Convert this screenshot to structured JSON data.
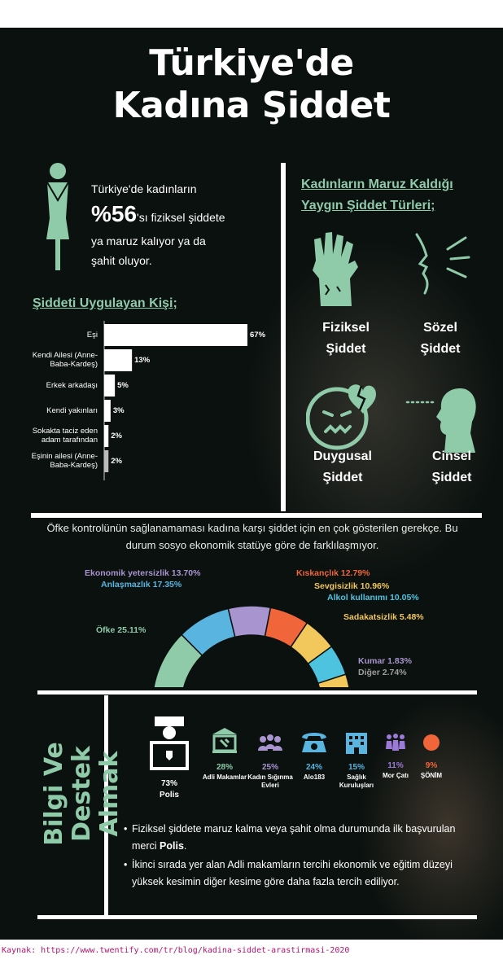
{
  "colors": {
    "background": "#0b110f",
    "accent_green": "#8fcaa9",
    "source_link": "#b0156f"
  },
  "header": {
    "title_line1": "Türkiye'de",
    "title_line2": "Kadına Şiddet"
  },
  "stat": {
    "line1": "Türkiye'de kadınların",
    "big": "%56",
    "line2": "'sı fiziksel şiddete",
    "line3": "ya maruz kalıyor ya da",
    "line4": "şahit oluyor.",
    "icon": "woman-figure-icon"
  },
  "perpetrator_title": "Şiddeti Uygulayan Kişi;",
  "violence_types": {
    "title_line1": "Kadınların Maruz Kaldığı",
    "title_line2": "Yaygın Şiddet Türleri;",
    "items": [
      {
        "line1": "Fiziksel",
        "line2": "Şiddet",
        "icon": "zombie-hand-icon"
      },
      {
        "line1": "Sözel",
        "line2": "Şiddet",
        "icon": "shouting-face-icon"
      },
      {
        "line1": "Duygusal",
        "line2": "Şiddet",
        "icon": "broken-heart-face-icon"
      },
      {
        "line1": "Cinsel",
        "line2": "Şiddet",
        "icon": "head-silhouette-icon"
      }
    ]
  },
  "causes_text": "Öfke kontrolünün sağlanamaması kadına karşı şiddet için en çok gösterilen gerekçe. Bu durum sosyo ekonomik statüye göre de farklılaşmıyor.",
  "support": {
    "side_title_line1": "Bilgi Ve Destek",
    "side_title_line2": "Almak",
    "items": [
      {
        "pct": "73%",
        "label": "Polis",
        "color": "#ffffff",
        "icon": "police-officer-icon"
      },
      {
        "pct": "28%",
        "label": "Adli Makamlar",
        "color": "#8fcaa9",
        "icon": "courthouse-icon"
      },
      {
        "pct": "25%",
        "label": "Kadın Sığınma Evleri",
        "color": "#a895cf",
        "icon": "group-icon"
      },
      {
        "pct": "24%",
        "label": "Alo183",
        "color": "#5ab4e0",
        "icon": "phone-icon"
      },
      {
        "pct": "15%",
        "label": "Sağlık Kuruluşları",
        "color": "#5ab4e0",
        "icon": "hospital-building-icon"
      },
      {
        "pct": "11%",
        "label": "Mor Çatı",
        "color": "#9b7ad8",
        "icon": "women-group-icon"
      },
      {
        "pct": "9%",
        "label": "ŞÖNİM",
        "color": "#f0653a",
        "icon": "orange-dot-icon"
      }
    ],
    "note1_pre": "Fiziksel şiddete maruz kalma veya şahit olma durumunda ilk başvurulan merci ",
    "note1_bold": "Polis",
    "note1_post": ".",
    "note2": "İkinci sırada yer alan Adli makamların tercihi ekonomik ve eğitim düzeyi yüksek kesimin diğer kesime göre daha fazla tercih ediliyor."
  },
  "source": "Kaynak: https://www.twentify.com/tr/blog/kadina-siddet-arastirmasi-2020",
  "chart_data": [
    {
      "type": "bar",
      "orientation": "horizontal",
      "title": "Şiddeti Uygulayan Kişi;",
      "categories": [
        "Eşi",
        "Kendi Ailesi (Anne-Baba-Kardeş)",
        "Erkek arkadaşı",
        "Kendi yakınları",
        "Sokakta taciz eden adam tarafından",
        "Eşinin ailesi (Anne-Baba-Kardeş)"
      ],
      "values": [
        67,
        13,
        5,
        3,
        2,
        2
      ],
      "value_labels": [
        "67%",
        "13%",
        "5%",
        "3%",
        "2%",
        "2%"
      ],
      "xlim": [
        0,
        67
      ],
      "bar_color": "#ffffff",
      "last_bar_color": "#bbbbbb"
    },
    {
      "type": "pie",
      "shape": "half-donut",
      "categories": [
        "Öfke",
        "Anlaşmazlık",
        "Ekonomik yetersizlik",
        "Kıskançlık",
        "Sevgisizlik",
        "Alkol kullanımı",
        "Sadakatsizlik",
        "Kumar",
        "Diğer"
      ],
      "values": [
        25.11,
        17.35,
        13.7,
        12.79,
        10.96,
        10.05,
        5.48,
        1.83,
        2.74
      ],
      "labels": [
        "Öfke 25.11%",
        "Anlaşmazlık 17.35%",
        "Ekonomik yetersizlik 13.70%",
        "Kıskançlık 12.79%",
        "Sevgisizlik 10.96%",
        "Alkol kullanımı 10.05%",
        "Sadakatsizlik 5.48%",
        "Kumar 1.83%",
        "Diğer 2.74%"
      ],
      "colors": [
        "#8fcaa9",
        "#5ab4e0",
        "#a895cf",
        "#f0653a",
        "#f2c75c",
        "#4ec3e0",
        "#f2c75c",
        "#a895cf",
        "#9e9e9e"
      ]
    }
  ]
}
